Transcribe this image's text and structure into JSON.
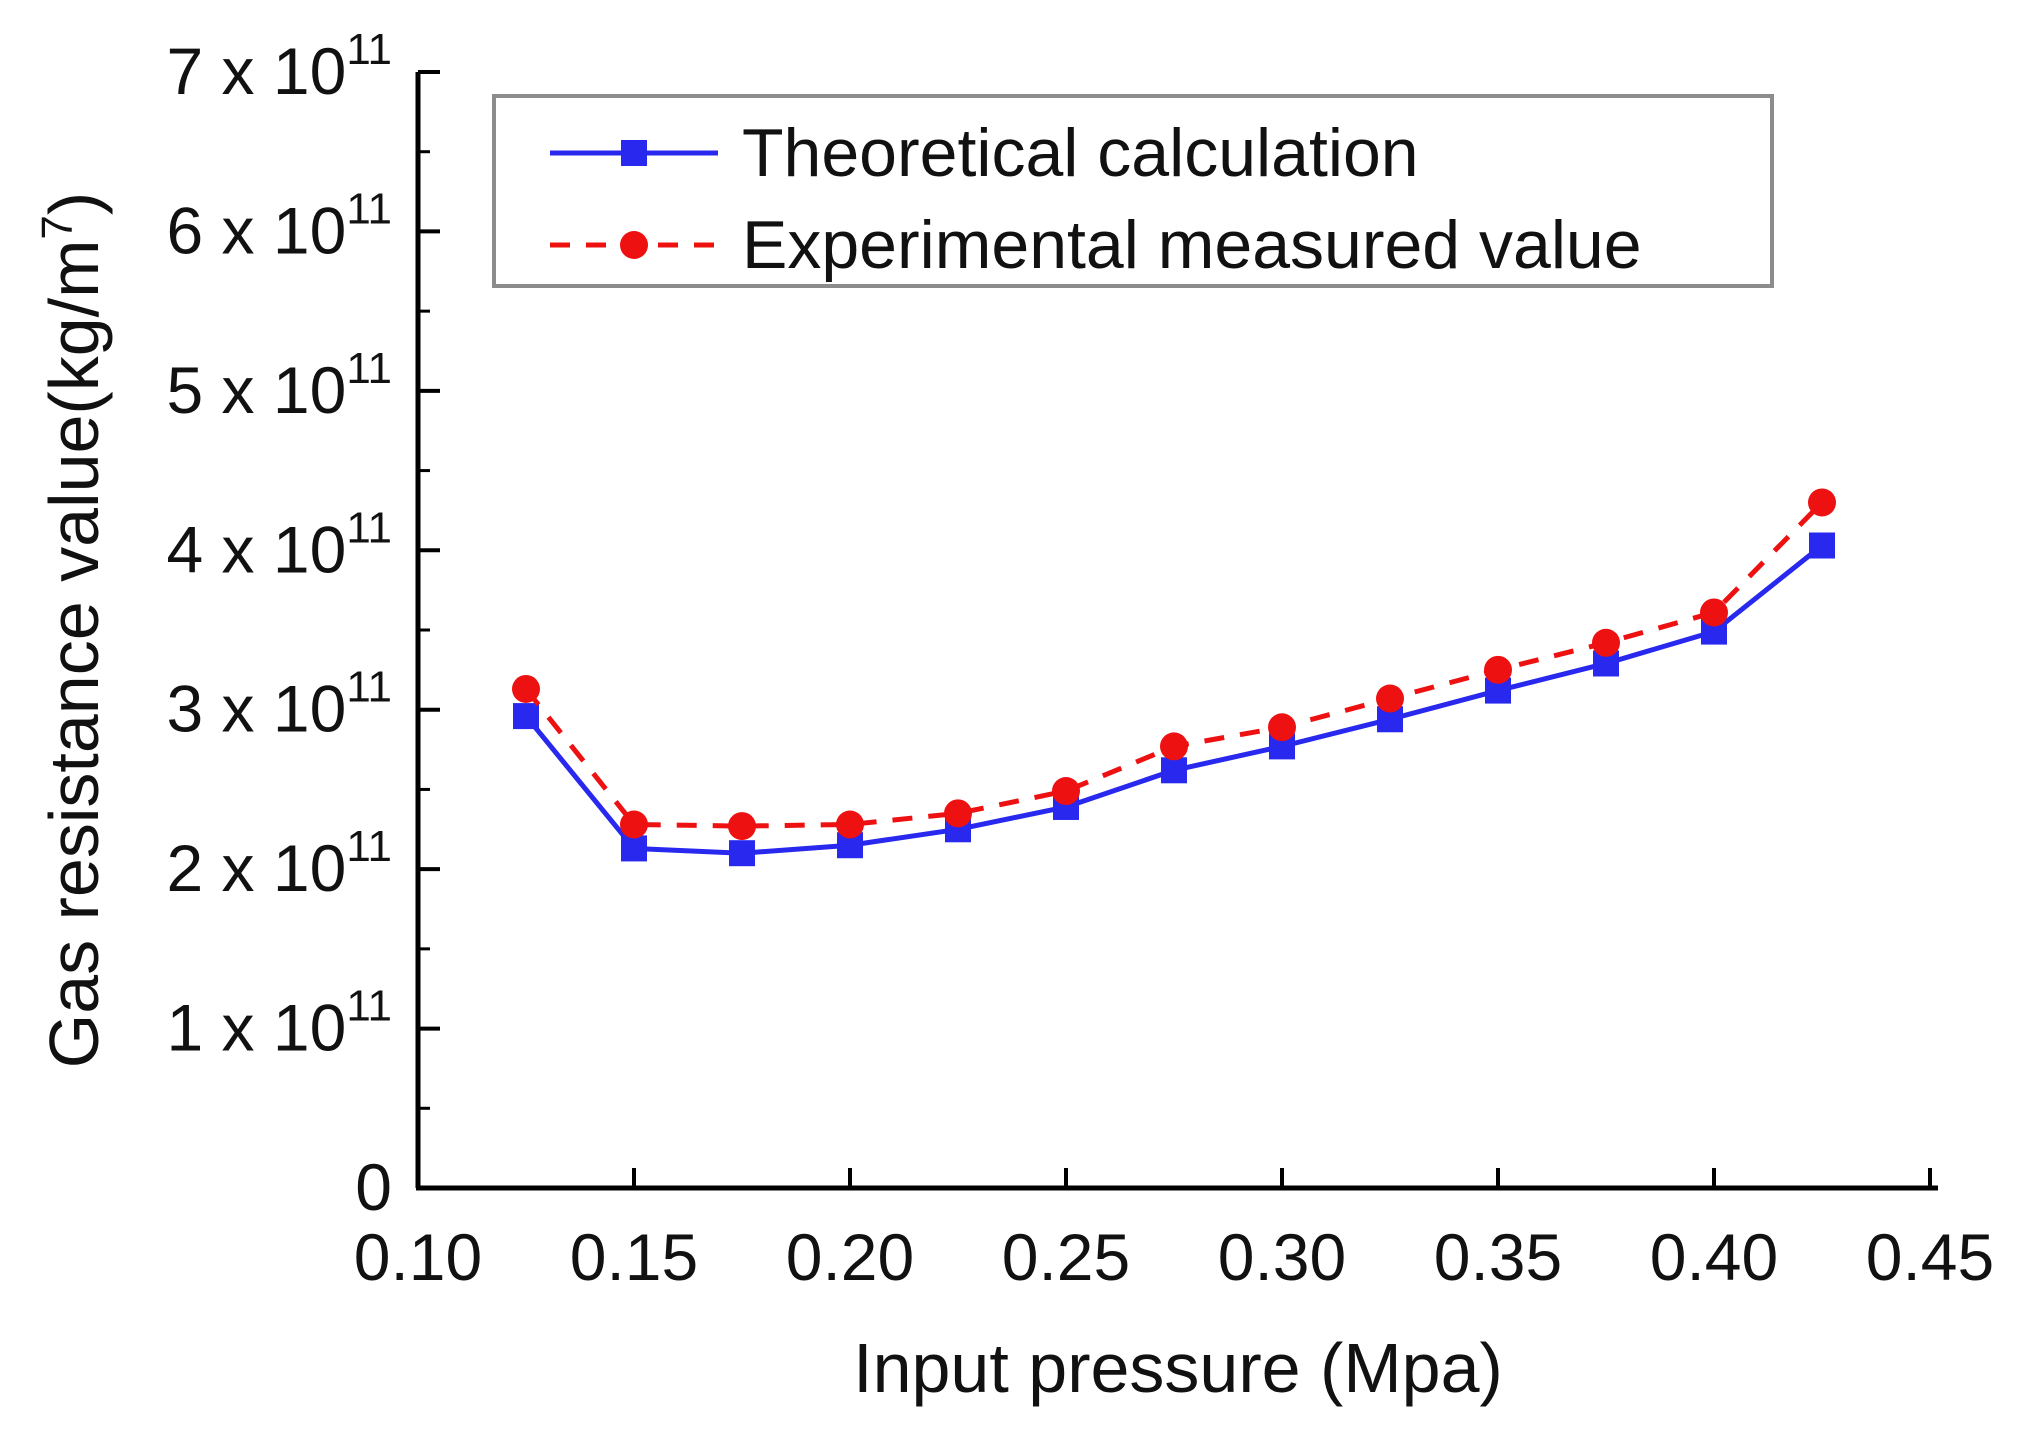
{
  "chart_data": {
    "type": "line",
    "title": "",
    "xlabel": "Input pressure (Mpa)",
    "ylabel_main": "Gas resistance value(kg/m",
    "ylabel_sup": "7",
    "ylabel_close": ")",
    "xlim": [
      0.1,
      0.45
    ],
    "ylim": [
      0,
      700000000000.0
    ],
    "x_ticks": [
      {
        "value": 0.1,
        "label": "0.10"
      },
      {
        "value": 0.15,
        "label": "0.15"
      },
      {
        "value": 0.2,
        "label": "0.20"
      },
      {
        "value": 0.25,
        "label": "0.25"
      },
      {
        "value": 0.3,
        "label": "0.30"
      },
      {
        "value": 0.35,
        "label": "0.35"
      },
      {
        "value": 0.4,
        "label": "0.40"
      },
      {
        "value": 0.45,
        "label": "0.45"
      }
    ],
    "y_ticks": [
      {
        "value": 0,
        "mant": "0",
        "times": "",
        "base": "",
        "exp": ""
      },
      {
        "value": 100000000000.0,
        "mant": "1",
        "times": "x",
        "base": "10",
        "exp": "11"
      },
      {
        "value": 200000000000.0,
        "mant": "2",
        "times": "x",
        "base": "10",
        "exp": "11"
      },
      {
        "value": 300000000000.0,
        "mant": "3",
        "times": "x",
        "base": "10",
        "exp": "11"
      },
      {
        "value": 400000000000.0,
        "mant": "4",
        "times": "x",
        "base": "10",
        "exp": "11"
      },
      {
        "value": 500000000000.0,
        "mant": "5",
        "times": "x",
        "base": "10",
        "exp": "11"
      },
      {
        "value": 600000000000.0,
        "mant": "6",
        "times": "x",
        "base": "10",
        "exp": "11"
      },
      {
        "value": 700000000000.0,
        "mant": "7",
        "times": "x",
        "base": "10",
        "exp": "11"
      }
    ],
    "x": [
      0.125,
      0.15,
      0.175,
      0.2,
      0.225,
      0.25,
      0.275,
      0.3,
      0.325,
      0.35,
      0.375,
      0.4,
      0.425
    ],
    "series": [
      {
        "name": "Theoretical calculation",
        "color": "#2828ee",
        "marker": "square",
        "line_style": "solid",
        "values": [
          296000000000.0,
          213000000000.0,
          210000000000.0,
          215000000000.0,
          225000000000.0,
          239000000000.0,
          262000000000.0,
          277000000000.0,
          294000000000.0,
          312000000000.0,
          329000000000.0,
          349000000000.0,
          403000000000.0
        ]
      },
      {
        "name": "Experimental measured value",
        "color": "#ee1111",
        "marker": "circle",
        "line_style": "dashed",
        "values": [
          313000000000.0,
          228000000000.0,
          227000000000.0,
          228000000000.0,
          235000000000.0,
          249000000000.0,
          277000000000.0,
          289000000000.0,
          307000000000.0,
          325000000000.0,
          342000000000.0,
          361000000000.0,
          430000000000.0
        ]
      }
    ],
    "legend_position": "top-right",
    "grid": false
  }
}
